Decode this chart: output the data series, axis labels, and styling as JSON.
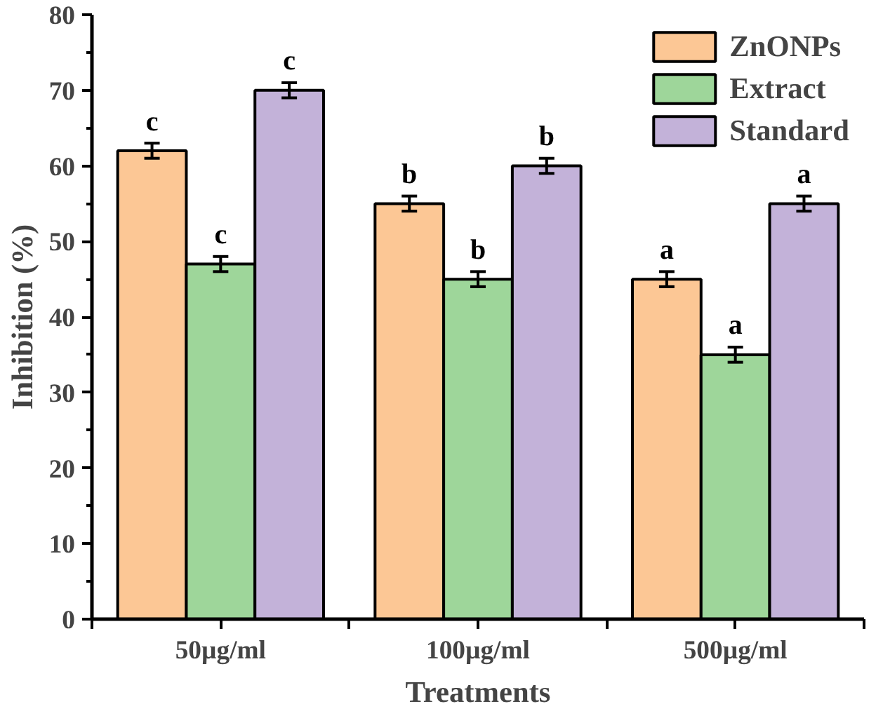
{
  "chart_data": {
    "type": "bar",
    "xlabel": "Treatments",
    "ylabel": "Inhibition (%)",
    "categories": [
      "50µg/ml",
      "100µg/ml",
      "500µg/ml"
    ],
    "series": [
      {
        "name": "ZnONPs",
        "color": "#fcc795",
        "values": [
          62,
          55,
          45
        ],
        "errors": [
          1,
          1,
          1
        ],
        "value_labels": [
          "c",
          "b",
          "a"
        ]
      },
      {
        "name": "Extract",
        "color": "#9ed69a",
        "values": [
          47,
          45,
          35
        ],
        "errors": [
          1,
          1,
          1
        ],
        "value_labels": [
          "c",
          "b",
          "a"
        ]
      },
      {
        "name": "Standard",
        "color": "#c3b2d9",
        "values": [
          70,
          60,
          55
        ],
        "errors": [
          1,
          1,
          1
        ],
        "value_labels": [
          "c",
          "b",
          "a"
        ]
      }
    ],
    "ylim": [
      0,
      80
    ],
    "yticks": [
      0,
      10,
      20,
      30,
      40,
      50,
      60,
      70,
      80
    ],
    "grid": false,
    "legend": "top right"
  }
}
